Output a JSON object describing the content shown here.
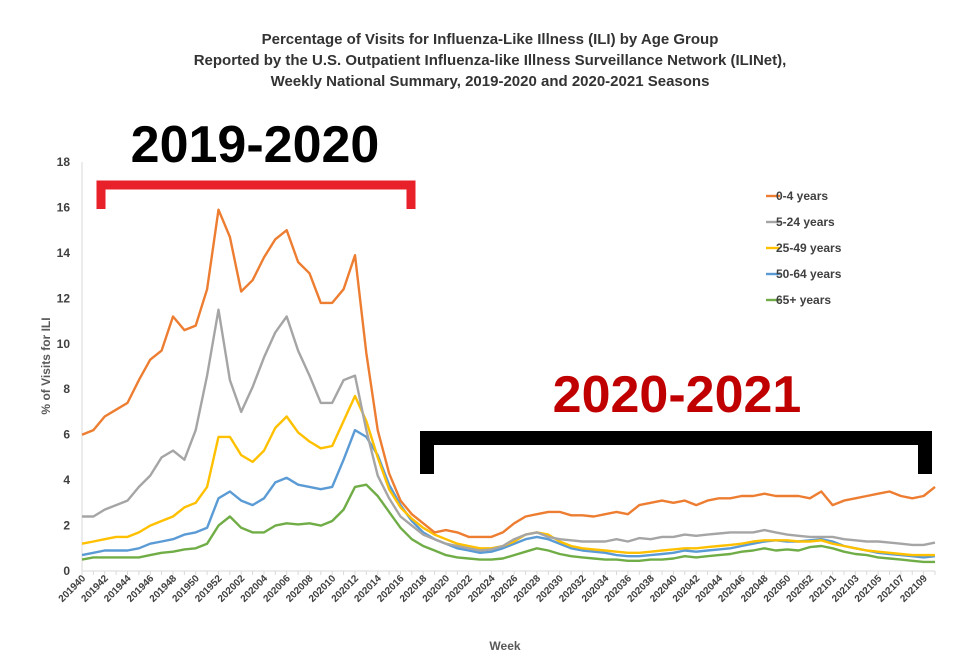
{
  "chart_data": {
    "type": "line",
    "title": [
      "Percentage of Visits for Influenza-Like Illness (ILI) by Age Group",
      "Reported by the U.S. Outpatient Influenza-like Illness Surveillance Network (ILINet),",
      "Weekly National Summary, 2019-2020 and 2020-2021 Seasons"
    ],
    "xlabel": "Week",
    "ylabel": "% of Visits for ILI",
    "ylim": [
      0,
      18
    ],
    "yticks": [
      0,
      2,
      4,
      6,
      8,
      10,
      12,
      14,
      16,
      18
    ],
    "grid": false,
    "legend_position": "top-right",
    "x": [
      "201940",
      "201941",
      "201942",
      "201943",
      "201944",
      "201945",
      "201946",
      "201947",
      "201948",
      "201949",
      "201950",
      "201951",
      "201952",
      "202001",
      "202002",
      "202003",
      "202004",
      "202005",
      "202006",
      "202007",
      "202008",
      "202009",
      "202010",
      "202011",
      "202012",
      "202013",
      "202014",
      "202015",
      "202016",
      "202017",
      "202018",
      "202019",
      "202020",
      "202021",
      "202022",
      "202023",
      "202024",
      "202025",
      "202026",
      "202027",
      "202028",
      "202029",
      "202030",
      "202031",
      "202032",
      "202033",
      "202034",
      "202035",
      "202036",
      "202037",
      "202038",
      "202039",
      "202040",
      "202041",
      "202042",
      "202043",
      "202044",
      "202045",
      "202046",
      "202047",
      "202048",
      "202049",
      "202050",
      "202051",
      "202052",
      "202053",
      "202101",
      "202102",
      "202103",
      "202104",
      "202105",
      "202106",
      "202107",
      "202108",
      "202109",
      "202110"
    ],
    "xtick_labels": [
      "201940",
      "201942",
      "201944",
      "201946",
      "201948",
      "201950",
      "201952",
      "202002",
      "202004",
      "202006",
      "202008",
      "202010",
      "202012",
      "202014",
      "202016",
      "202018",
      "202020",
      "202022",
      "202024",
      "202026",
      "202028",
      "202030",
      "202032",
      "202034",
      "202036",
      "202038",
      "202040",
      "202042",
      "202044",
      "202046",
      "202048",
      "202050",
      "202052",
      "202101",
      "202103",
      "202105",
      "202107",
      "202109"
    ],
    "series": [
      {
        "name": "0-4 years",
        "color": "#ED7D31",
        "values": [
          6.0,
          6.2,
          6.8,
          7.1,
          7.4,
          8.4,
          9.3,
          9.7,
          11.2,
          10.6,
          10.8,
          12.4,
          15.9,
          14.7,
          12.3,
          12.8,
          13.8,
          14.6,
          15.0,
          13.6,
          13.1,
          11.8,
          11.8,
          12.4,
          13.9,
          9.6,
          6.2,
          4.3,
          3.1,
          2.5,
          2.1,
          1.7,
          1.8,
          1.7,
          1.5,
          1.5,
          1.5,
          1.7,
          2.1,
          2.4,
          2.5,
          2.6,
          2.6,
          2.45,
          2.45,
          2.4,
          2.5,
          2.6,
          2.5,
          2.9,
          3.0,
          3.1,
          3.0,
          3.1,
          2.9,
          3.1,
          3.2,
          3.2,
          3.3,
          3.3,
          3.4,
          3.3,
          3.3,
          3.3,
          3.2,
          3.5,
          2.9,
          3.1,
          3.2,
          3.3,
          3.4,
          3.5,
          3.3,
          3.2,
          3.3,
          3.7
        ]
      },
      {
        "name": "5-24 years",
        "color": "#A5A5A5",
        "values": [
          2.4,
          2.4,
          2.7,
          2.9,
          3.1,
          3.7,
          4.2,
          5.0,
          5.3,
          4.9,
          6.2,
          8.6,
          11.5,
          8.4,
          7.0,
          8.1,
          9.4,
          10.5,
          11.2,
          9.7,
          8.6,
          7.4,
          7.4,
          8.4,
          8.6,
          6.2,
          4.2,
          3.2,
          2.4,
          2.0,
          1.6,
          1.4,
          1.2,
          1.1,
          1.0,
          0.9,
          0.95,
          1.1,
          1.4,
          1.6,
          1.7,
          1.5,
          1.4,
          1.35,
          1.3,
          1.3,
          1.3,
          1.4,
          1.3,
          1.45,
          1.4,
          1.5,
          1.5,
          1.6,
          1.55,
          1.6,
          1.65,
          1.7,
          1.7,
          1.7,
          1.8,
          1.7,
          1.6,
          1.55,
          1.5,
          1.5,
          1.5,
          1.4,
          1.35,
          1.3,
          1.3,
          1.25,
          1.2,
          1.15,
          1.15,
          1.25
        ]
      },
      {
        "name": "25-49 years",
        "color": "#FFC000",
        "values": [
          1.2,
          1.3,
          1.4,
          1.5,
          1.5,
          1.7,
          2.0,
          2.2,
          2.4,
          2.8,
          3.0,
          3.7,
          5.9,
          5.9,
          5.1,
          4.8,
          5.3,
          6.3,
          6.8,
          6.1,
          5.7,
          5.4,
          5.5,
          6.6,
          7.7,
          6.6,
          5.0,
          3.6,
          2.8,
          2.3,
          1.9,
          1.6,
          1.4,
          1.2,
          1.1,
          1.0,
          1.0,
          1.1,
          1.3,
          1.6,
          1.7,
          1.6,
          1.3,
          1.1,
          1.0,
          0.95,
          0.9,
          0.85,
          0.8,
          0.8,
          0.85,
          0.9,
          0.95,
          1.0,
          1.0,
          1.05,
          1.1,
          1.15,
          1.2,
          1.3,
          1.35,
          1.35,
          1.35,
          1.3,
          1.3,
          1.35,
          1.2,
          1.1,
          1.0,
          0.9,
          0.85,
          0.8,
          0.75,
          0.7,
          0.7,
          0.7
        ]
      },
      {
        "name": "50-64 years",
        "color": "#5B9BD5",
        "values": [
          0.7,
          0.8,
          0.9,
          0.9,
          0.9,
          1.0,
          1.2,
          1.3,
          1.4,
          1.6,
          1.7,
          1.9,
          3.2,
          3.5,
          3.1,
          2.9,
          3.2,
          3.9,
          4.1,
          3.8,
          3.7,
          3.6,
          3.7,
          4.9,
          6.2,
          5.9,
          5.1,
          3.8,
          2.9,
          2.2,
          1.7,
          1.4,
          1.2,
          1.0,
          0.9,
          0.8,
          0.85,
          1.0,
          1.2,
          1.4,
          1.5,
          1.4,
          1.2,
          1.0,
          0.9,
          0.85,
          0.8,
          0.7,
          0.65,
          0.65,
          0.7,
          0.75,
          0.8,
          0.9,
          0.85,
          0.9,
          0.95,
          1.0,
          1.1,
          1.2,
          1.3,
          1.35,
          1.3,
          1.3,
          1.35,
          1.4,
          1.3,
          1.1,
          1.0,
          0.9,
          0.8,
          0.75,
          0.7,
          0.65,
          0.6,
          0.65
        ]
      },
      {
        "name": "65+ years",
        "color": "#70AD47",
        "values": [
          0.5,
          0.6,
          0.6,
          0.6,
          0.6,
          0.6,
          0.7,
          0.8,
          0.85,
          0.95,
          1.0,
          1.2,
          2.0,
          2.4,
          1.9,
          1.7,
          1.7,
          2.0,
          2.1,
          2.05,
          2.1,
          2.0,
          2.2,
          2.7,
          3.7,
          3.8,
          3.3,
          2.6,
          1.9,
          1.4,
          1.1,
          0.9,
          0.7,
          0.6,
          0.55,
          0.5,
          0.5,
          0.55,
          0.7,
          0.85,
          1.0,
          0.9,
          0.75,
          0.65,
          0.6,
          0.55,
          0.5,
          0.5,
          0.45,
          0.45,
          0.5,
          0.5,
          0.55,
          0.65,
          0.6,
          0.65,
          0.7,
          0.75,
          0.85,
          0.9,
          1.0,
          0.9,
          0.95,
          0.9,
          1.05,
          1.1,
          1.0,
          0.85,
          0.75,
          0.7,
          0.6,
          0.55,
          0.5,
          0.45,
          0.4,
          0.4
        ]
      }
    ],
    "annotations": [
      {
        "text": "2019-2020",
        "color": "#000000",
        "bracket_color": "#E8202A",
        "season": "2019-2020"
      },
      {
        "text": "2020-2021",
        "color": "#C00000",
        "bracket_color": "#000000",
        "season": "2020-2021"
      }
    ]
  }
}
